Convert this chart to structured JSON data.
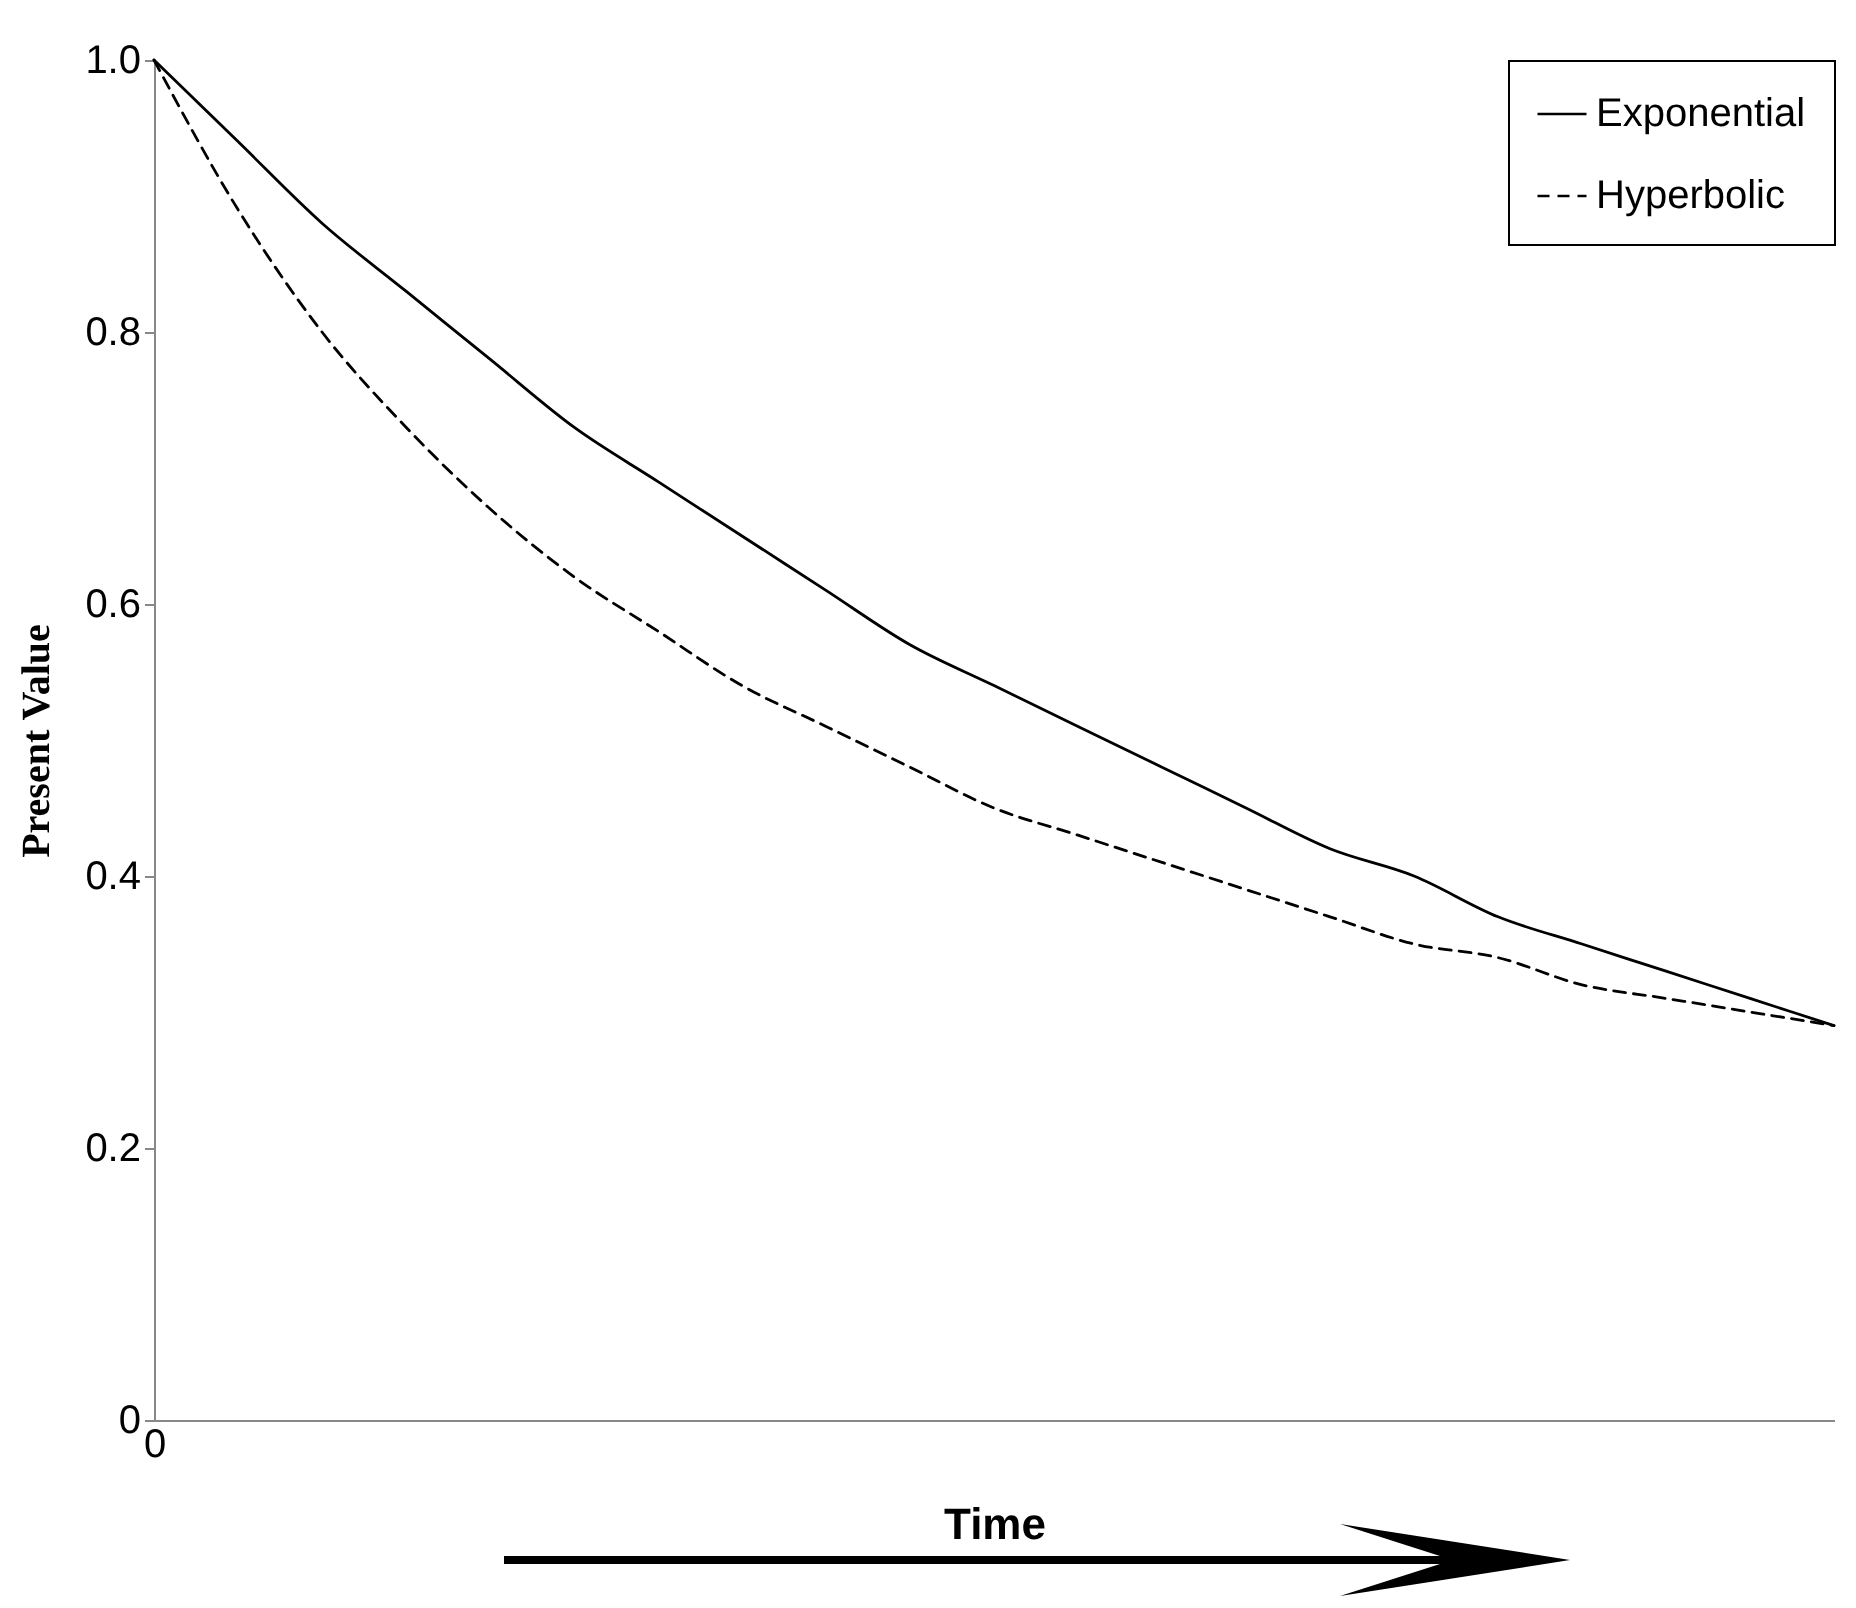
{
  "chart_data": {
    "type": "line",
    "xlabel": "Time",
    "ylabel": "Present Value",
    "categories": [
      "0",
      null,
      null,
      null,
      null,
      null,
      null,
      null,
      null,
      null,
      null,
      null,
      null,
      null,
      null,
      null,
      null,
      null,
      null,
      null,
      null
    ],
    "series": [
      {
        "name": "Exponential",
        "color": "#000000",
        "line_style": "solid",
        "values": [
          1.0,
          0.94,
          0.88,
          0.83,
          0.78,
          0.73,
          0.69,
          0.65,
          0.61,
          0.57,
          0.54,
          0.51,
          0.48,
          0.45,
          0.42,
          0.4,
          0.37,
          0.35,
          0.33,
          0.31,
          0.29
        ]
      },
      {
        "name": "Hyperbolic",
        "color": "#000000",
        "line_style": "dashed",
        "values": [
          1.0,
          0.89,
          0.8,
          0.73,
          0.67,
          0.62,
          0.58,
          0.54,
          0.51,
          0.48,
          0.45,
          0.43,
          0.41,
          0.39,
          0.37,
          0.35,
          0.34,
          0.32,
          0.31,
          0.3,
          0.29
        ]
      }
    ],
    "ylim": [
      0,
      1
    ],
    "yticks": [
      0,
      0.2,
      0.4,
      0.6,
      0.8,
      {
        "value": 1,
        "label": "1.0"
      }
    ],
    "legend": "top right"
  }
}
